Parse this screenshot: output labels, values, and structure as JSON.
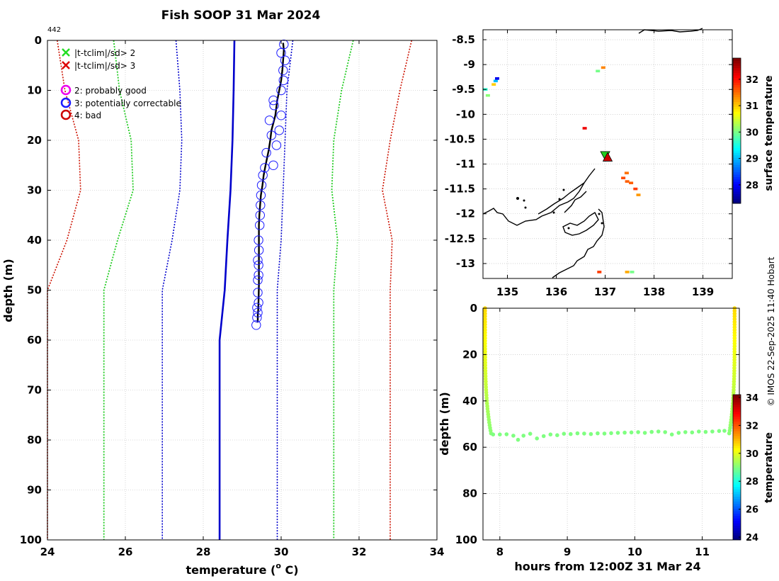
{
  "title": "Fish SOOP 31 Mar 2024",
  "profile_id": "442",
  "credit": "© IMOS 22-Sep-2025 11:40 Hobart",
  "colors": {
    "obs": "#000000",
    "circles": "#1a1aff",
    "mean": "#0000cc",
    "sd1": "#0000cc",
    "sd2": "#22cc22",
    "sd3": "#cc1100",
    "grid": "#b8b8b8",
    "land": "#000000",
    "flag_bad": "#cc0000",
    "flag_prob": "#ee00ee",
    "cross_green": "#22dd22",
    "cross_red": "#dd0000"
  },
  "legend": {
    "cross2": "|t-tclim|/sd> 2",
    "cross3": "|t-tclim|/sd> 3",
    "flag2": "2: probably good",
    "flag3": "3: potentially correctable",
    "flag4": "4: bad"
  },
  "chart_data": [
    {
      "id": "profile",
      "type": "line",
      "xlabel": "temperature (",
      "xlabel_sup": "o",
      "xlabel_end": " C)",
      "ylabel": "depth (m)",
      "xlim": [
        24,
        34
      ],
      "ylim": [
        0,
        100
      ],
      "xticks": [
        "24",
        "26",
        "28",
        "30",
        "32",
        "34"
      ],
      "yticks": [
        "0",
        "10",
        "20",
        "30",
        "40",
        "50",
        "60",
        "70",
        "80",
        "90",
        "100"
      ],
      "series": [
        {
          "name": "observed",
          "temp": [
            30.05,
            30.07,
            30.05,
            30.03,
            30.0,
            29.95,
            29.9,
            29.85,
            29.75,
            29.72,
            29.68,
            29.6,
            29.55,
            29.52,
            29.48,
            29.46,
            29.44,
            29.43,
            29.43,
            29.43,
            29.43,
            29.43,
            29.42,
            29.41,
            29.4,
            29.4,
            29.39
          ],
          "depth": [
            0.5,
            2,
            4,
            6,
            8,
            10,
            12,
            15,
            18,
            20,
            22,
            25,
            27,
            29,
            31,
            33,
            35,
            37,
            40,
            43,
            46,
            49,
            52,
            54,
            55,
            56,
            56.5
          ]
        },
        {
          "name": "clim_mean",
          "temp": [
            28.8,
            28.78,
            28.75,
            28.7,
            28.62,
            28.55,
            28.42,
            28.42
          ],
          "depth": [
            0,
            10,
            20,
            30,
            40,
            50,
            60,
            100
          ]
        },
        {
          "name": "clim_minus_1sd",
          "temp": [
            27.3,
            27.4,
            27.45,
            27.4,
            27.2,
            26.95,
            26.95
          ],
          "depth": [
            0,
            10,
            20,
            30,
            40,
            50,
            100
          ]
        },
        {
          "name": "clim_plus_1sd",
          "temp": [
            30.3,
            30.15,
            30.1,
            30.05,
            30.0,
            29.9,
            29.9
          ],
          "depth": [
            0,
            10,
            20,
            30,
            40,
            50,
            100
          ]
        },
        {
          "name": "clim_minus_2sd",
          "temp": [
            25.7,
            25.85,
            26.15,
            26.2,
            25.8,
            25.45,
            25.45
          ],
          "depth": [
            0,
            10,
            20,
            30,
            40,
            50,
            100
          ]
        },
        {
          "name": "clim_plus_2sd",
          "temp": [
            31.85,
            31.55,
            31.35,
            31.3,
            31.45,
            31.35,
            31.35
          ],
          "depth": [
            0,
            10,
            20,
            30,
            40,
            50,
            100
          ]
        },
        {
          "name": "clim_minus_3sd",
          "temp": [
            24.25,
            24.45,
            24.8,
            24.85,
            24.5,
            24.0,
            24.0
          ],
          "depth": [
            0,
            10,
            20,
            30,
            40,
            50,
            100
          ]
        },
        {
          "name": "clim_plus_3sd",
          "temp": [
            33.35,
            33.05,
            32.8,
            32.6,
            32.85,
            32.8,
            32.8
          ],
          "depth": [
            0,
            10,
            20,
            30,
            40,
            50,
            100
          ]
        }
      ],
      "circle_points": {
        "temp": [
          30.07,
          30.0,
          30.1,
          30.05,
          30.06,
          30.0,
          29.8,
          29.82,
          30.0,
          29.7,
          29.95,
          29.75,
          29.88,
          29.62,
          29.8,
          29.58,
          29.53,
          29.5,
          29.48,
          29.47,
          29.46,
          29.45,
          29.42,
          29.43,
          29.4,
          29.42,
          29.42,
          29.4,
          29.4,
          29.42,
          29.38,
          29.4,
          29.38,
          29.36
        ],
        "depth": [
          0.8,
          2.5,
          4,
          6,
          8,
          10,
          12,
          13,
          15,
          16,
          18,
          19,
          21,
          22.5,
          25,
          25.5,
          27,
          29,
          31,
          33,
          35,
          37,
          40,
          42,
          44,
          45,
          47,
          48,
          50.5,
          52.5,
          53.5,
          54.5,
          55.5,
          57
        ]
      }
    },
    {
      "id": "map",
      "type": "scatter",
      "xlim": [
        134.5,
        139.6
      ],
      "ylim": [
        -13.3,
        -8.3
      ],
      "xticks": [
        "135",
        "136",
        "137",
        "138",
        "139"
      ],
      "yticks": [
        "-8.5",
        "-9",
        "-9.5",
        "-10",
        "-10.5",
        "-11",
        "-11.5",
        "-12",
        "-12.5",
        "-13"
      ],
      "colorbar": {
        "label": "surface temperature",
        "lim": [
          27.3,
          32.8
        ],
        "ticks": [
          "28",
          "29",
          "30",
          "31",
          "32"
        ]
      },
      "points": {
        "lon": [
          134.55,
          134.6,
          134.72,
          134.76,
          134.79,
          136.85,
          136.96,
          136.58,
          137.37,
          137.44,
          137.45,
          137.53,
          137.62,
          137.68,
          136.88,
          137.45,
          137.55
        ],
        "lat": [
          -9.5,
          -9.62,
          -9.4,
          -9.33,
          -9.28,
          -9.13,
          -9.06,
          -10.28,
          -11.28,
          -11.18,
          -11.35,
          -11.38,
          -11.5,
          -11.62,
          -13.17,
          -13.17,
          -13.17
        ],
        "temp": [
          29.6,
          30.1,
          31.0,
          29.0,
          27.9,
          30.0,
          31.4,
          32.2,
          31.7,
          31.5,
          31.6,
          31.6,
          31.8,
          31.3,
          31.8,
          31.2,
          30.0
        ]
      },
      "marker_bad": {
        "lon": 137.05,
        "lat": -10.87
      },
      "marker_prob": {
        "lon": 137.0,
        "lat": -10.82
      }
    },
    {
      "id": "track",
      "type": "scatter",
      "xlabel": "hours from 12:00Z 31 Mar 24",
      "ylabel": "depth (m)",
      "xlim": [
        7.75,
        11.55
      ],
      "ylim": [
        0,
        100
      ],
      "xticks": [
        "8",
        "9",
        "10",
        "11"
      ],
      "yticks": [
        "0",
        "20",
        "40",
        "60",
        "80",
        "100"
      ],
      "colorbar": {
        "label": "temperature",
        "lim": [
          23.8,
          34.2
        ],
        "ticks": [
          "24",
          "26",
          "28",
          "30",
          "32",
          "34"
        ]
      },
      "trajectory": {
        "hours": [
          7.9,
          8.0,
          8.1,
          8.2,
          8.27,
          8.35,
          8.45,
          8.55,
          8.65,
          8.75,
          8.85,
          8.95,
          9.05,
          9.15,
          9.25,
          9.35,
          9.45,
          9.55,
          9.65,
          9.75,
          9.85,
          9.95,
          10.05,
          10.15,
          10.25,
          10.35,
          10.45,
          10.55,
          10.65,
          10.75,
          10.85,
          10.95,
          11.05,
          11.15,
          11.25,
          11.33
        ],
        "depth": [
          54.5,
          54.5,
          54.4,
          55.0,
          56.8,
          55.0,
          54.2,
          56.2,
          55.2,
          54.5,
          54.8,
          54.2,
          54.3,
          54.0,
          54.1,
          54.3,
          54.0,
          54.1,
          53.9,
          53.8,
          53.7,
          53.6,
          53.5,
          53.8,
          53.4,
          53.2,
          53.5,
          54.5,
          53.8,
          53.5,
          53.6,
          53.2,
          53.4,
          53.2,
          53.0,
          52.9
        ],
        "temp": [
          29.0,
          29.0,
          29.0,
          29.0,
          29.0,
          29.0,
          29.0,
          29.0,
          29.0,
          29.0,
          29.0,
          29.0,
          29.0,
          29.0,
          29.0,
          29.0,
          29.0,
          29.0,
          29.0,
          29.0,
          29.0,
          29.0,
          29.0,
          29.0,
          29.0,
          29.0,
          29.0,
          29.0,
          29.0,
          29.0,
          29.0,
          29.0,
          29.0,
          29.0,
          29.0,
          29.0
        ]
      },
      "descent": {
        "hour": 7.78,
        "hour_end": 7.87,
        "top_temp": 30.7,
        "bottom_temp": 29.1,
        "bottom_depth": 54
      },
      "ascent": {
        "hour": 11.48,
        "hour_end": 11.4,
        "top_temp": 30.7,
        "bottom_temp": 29.1,
        "bottom_depth": 54
      }
    }
  ]
}
